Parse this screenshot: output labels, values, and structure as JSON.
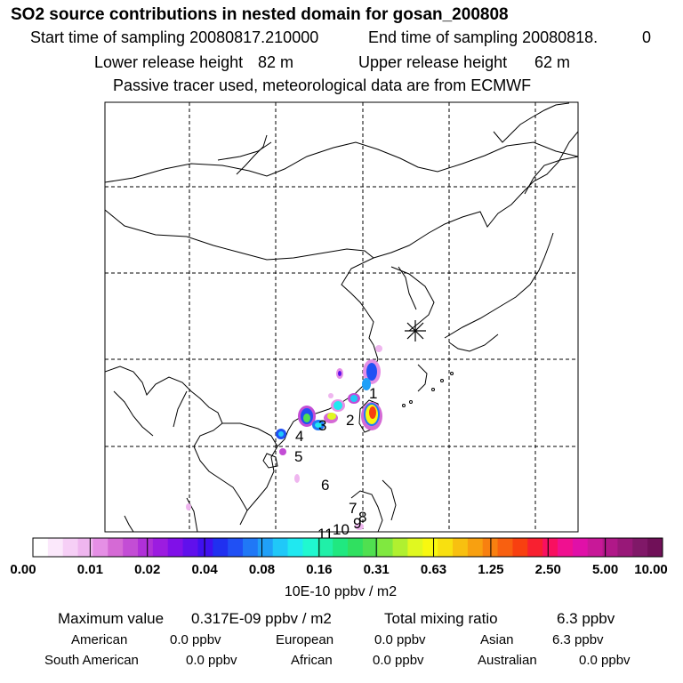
{
  "header": {
    "title": "SO2 source contributions in nested domain for gosan_200808",
    "start_label": "Start time of sampling 20080817.210000",
    "end_label": "End time of sampling 20080818.",
    "end_value": "0",
    "lower_label": "Lower release height",
    "lower_value": "82 m",
    "upper_label": "Upper release height",
    "upper_value": "62 m",
    "note": "Passive tracer used, meteorological data are from ECMWF"
  },
  "map": {
    "receptor_marker": "Gosan receptor",
    "point_labels": [
      "1",
      "2",
      "3",
      "4",
      "5",
      "6",
      "7",
      "8",
      "9",
      "10",
      "11"
    ]
  },
  "colorbar": {
    "ticks": [
      "0.00",
      "0.01",
      "0.02",
      "0.04",
      "0.08",
      "0.16",
      "0.31",
      "0.63",
      "1.25",
      "2.50",
      "5.00",
      "10.00"
    ],
    "colors": [
      "#ffffff",
      "#fbe8fb",
      "#f6cff6",
      "#efb6ef",
      "#e58fe5",
      "#d56ad5",
      "#c34dd5",
      "#b030d8",
      "#9c1ce0",
      "#8010e8",
      "#6010ec",
      "#4010f0",
      "#2030f0",
      "#2050f4",
      "#2078f6",
      "#20a0f8",
      "#20c8f8",
      "#20e8f0",
      "#20f8d0",
      "#20f0a8",
      "#20e880",
      "#30e060",
      "#50e050",
      "#80e840",
      "#b0f030",
      "#e0f820",
      "#f8f810",
      "#f8e010",
      "#f8c010",
      "#f8a010",
      "#f88010",
      "#f86010",
      "#f84010",
      "#f82030",
      "#f81060",
      "#f01090",
      "#e010a8",
      "#c81898",
      "#b01888",
      "#981878",
      "#801868",
      "#701058"
    ],
    "unit": "10E-10 ppbv / m2"
  },
  "summary": {
    "max_label": "Maximum value",
    "max_value": "0.317E-09 ppbv / m2",
    "total_label": "Total mixing ratio",
    "total_value": "6.3 ppbv",
    "regions": [
      {
        "name": "American",
        "value": "0.0 ppbv"
      },
      {
        "name": "European",
        "value": "0.0 ppbv"
      },
      {
        "name": "Asian",
        "value": "6.3 ppbv"
      },
      {
        "name": "South American",
        "value": "0.0 ppbv"
      },
      {
        "name": "African",
        "value": "0.0 ppbv"
      },
      {
        "name": "Australian",
        "value": "0.0 ppbv"
      }
    ]
  }
}
